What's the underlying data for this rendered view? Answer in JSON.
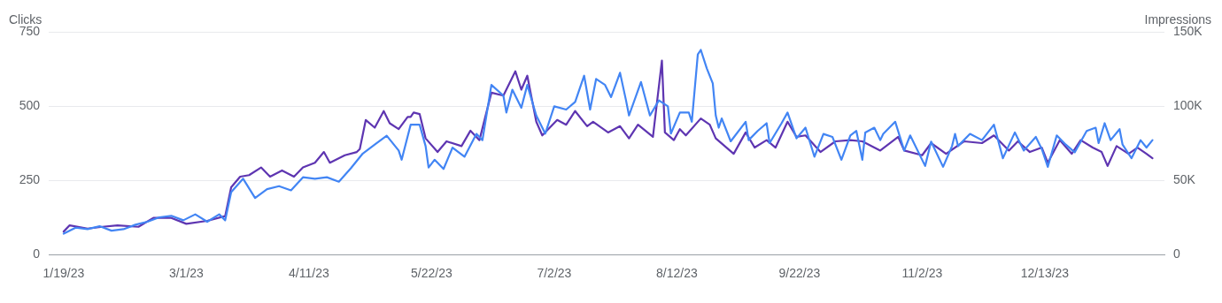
{
  "chart_data": {
    "type": "line",
    "ylabel": "Clicks",
    "y2label": "Impressions",
    "grid": "y",
    "xlim": [
      "2023-01-14",
      "2024-01-22"
    ],
    "xticks": [
      {
        "value": "2023-01-19",
        "label": "1/19/23"
      },
      {
        "value": "2023-03-01",
        "label": "3/1/23"
      },
      {
        "value": "2023-04-11",
        "label": "4/11/23"
      },
      {
        "value": "2023-05-22",
        "label": "5/22/23"
      },
      {
        "value": "2023-07-02",
        "label": "7/2/23"
      },
      {
        "value": "2023-08-12",
        "label": "8/12/23"
      },
      {
        "value": "2023-09-22",
        "label": "9/22/23"
      },
      {
        "value": "2023-11-02",
        "label": "11/2/23"
      },
      {
        "value": "2023-12-13",
        "label": "12/13/23"
      }
    ],
    "ylim": [
      0,
      750
    ],
    "yticks": [
      0,
      250,
      500,
      750
    ],
    "y2lim": [
      0,
      150000
    ],
    "y2ticks": [
      0,
      {
        "value": 50000,
        "label": "50K"
      },
      {
        "value": 100000,
        "label": "100K"
      },
      {
        "value": 150000,
        "label": "150K"
      }
    ],
    "series": [
      {
        "color": "#4285f4",
        "x": [
          "2023-01-19",
          "2023-01-23",
          "2023-01-27",
          "2023-01-31",
          "2023-02-04",
          "2023-02-08",
          "2023-02-12",
          "2023-02-16",
          "2023-02-20",
          "2023-02-24",
          "2023-02-28",
          "2023-03-04",
          "2023-03-08",
          "2023-03-12",
          "2023-03-14",
          "2023-03-16",
          "2023-03-20",
          "2023-03-24",
          "2023-03-28",
          "2023-04-01",
          "2023-04-05",
          "2023-04-09",
          "2023-04-13",
          "2023-04-17",
          "2023-04-21",
          "2023-04-25",
          "2023-04-29",
          "2023-05-03",
          "2023-05-07",
          "2023-05-11",
          "2023-05-12",
          "2023-05-15",
          "2023-05-18",
          "2023-05-20",
          "2023-05-21",
          "2023-05-23",
          "2023-05-26",
          "2023-05-29",
          "2023-06-02",
          "2023-06-06",
          "2023-06-08",
          "2023-06-11",
          "2023-06-15",
          "2023-06-16",
          "2023-06-18",
          "2023-06-21",
          "2023-06-23",
          "2023-06-26",
          "2023-06-29",
          "2023-07-02",
          "2023-07-06",
          "2023-07-09",
          "2023-07-12",
          "2023-07-14",
          "2023-07-16",
          "2023-07-19",
          "2023-07-21",
          "2023-07-24",
          "2023-07-26",
          "2023-07-27",
          "2023-07-31",
          "2023-08-03",
          "2023-08-06",
          "2023-08-09",
          "2023-08-10",
          "2023-08-13",
          "2023-08-16",
          "2023-08-17",
          "2023-08-19",
          "2023-08-20",
          "2023-08-22",
          "2023-08-24",
          "2023-08-25",
          "2023-08-26",
          "2023-08-27",
          "2023-08-30",
          "2023-09-04",
          "2023-09-05",
          "2023-09-08",
          "2023-09-11",
          "2023-09-12",
          "2023-09-16",
          "2023-09-18",
          "2023-09-21",
          "2023-09-24",
          "2023-09-27",
          "2023-09-30",
          "2023-10-03",
          "2023-10-06",
          "2023-10-09",
          "2023-10-11",
          "2023-10-13",
          "2023-10-14",
          "2023-10-17",
          "2023-10-19",
          "2023-10-20",
          "2023-10-24",
          "2023-10-27",
          "2023-10-29",
          "2023-11-03",
          "2023-11-05",
          "2023-11-09",
          "2023-11-12",
          "2023-11-13",
          "2023-11-14",
          "2023-11-18",
          "2023-11-22",
          "2023-11-26",
          "2023-11-29",
          "2023-12-03",
          "2023-12-06",
          "2023-12-10",
          "2023-12-12",
          "2023-12-14",
          "2023-12-17",
          "2023-12-20",
          "2023-12-23",
          "2023-12-27",
          "2023-12-30",
          "2023-12-31",
          "2024-01-02",
          "2024-01-04",
          "2024-01-07",
          "2024-01-08",
          "2024-01-11",
          "2024-01-14",
          "2024-01-16",
          "2024-01-18"
        ],
        "values": [
          70,
          90,
          85,
          95,
          80,
          85,
          100,
          110,
          125,
          130,
          115,
          135,
          110,
          135,
          115,
          210,
          255,
          190,
          220,
          230,
          216,
          260,
          255,
          260,
          245,
          290,
          340,
          370,
          400,
          350,
          319,
          437,
          437,
          365,
          293,
          319,
          288,
          360,
          329,
          406,
          385,
          571,
          535,
          478,
          555,
          494,
          571,
          468,
          407,
          499,
          488,
          514,
          602,
          488,
          591,
          571,
          530,
          612,
          519,
          468,
          581,
          468,
          519,
          499,
          407,
          478,
          478,
          447,
          674,
          689,
          627,
          576,
          468,
          427,
          458,
          381,
          447,
          385,
          416,
          442,
          375,
          442,
          478,
          391,
          427,
          329,
          406,
          396,
          319,
          401,
          416,
          319,
          411,
          427,
          385,
          406,
          447,
          350,
          401,
          298,
          380,
          295,
          365,
          406,
          365,
          406,
          385,
          437,
          324,
          411,
          350,
          396,
          355,
          295,
          401,
          370,
          344,
          416,
          427,
          375,
          442,
          385,
          422,
          370,
          324,
          385,
          360,
          385
        ]
      },
      {
        "color": "#5e35b1",
        "axis": "y2",
        "x": [
          "2023-01-19",
          "2023-01-21",
          "2023-01-27",
          "2023-02-01",
          "2023-02-06",
          "2023-02-13",
          "2023-02-18",
          "2023-02-24",
          "2023-03-01",
          "2023-03-08",
          "2023-03-14",
          "2023-03-16",
          "2023-03-19",
          "2023-03-22",
          "2023-03-26",
          "2023-03-29",
          "2023-04-02",
          "2023-04-06",
          "2023-04-09",
          "2023-04-13",
          "2023-04-16",
          "2023-04-18",
          "2023-04-23",
          "2023-04-27",
          "2023-04-28",
          "2023-04-30",
          "2023-05-03",
          "2023-05-06",
          "2023-05-08",
          "2023-05-11",
          "2023-05-14",
          "2023-05-15",
          "2023-05-16",
          "2023-05-18",
          "2023-05-20",
          "2023-05-24",
          "2023-05-27",
          "2023-06-01",
          "2023-06-04",
          "2023-06-07",
          "2023-06-11",
          "2023-06-15",
          "2023-06-19",
          "2023-06-21",
          "2023-06-23",
          "2023-06-26",
          "2023-06-28",
          "2023-07-03",
          "2023-07-06",
          "2023-07-09",
          "2023-07-13",
          "2023-07-15",
          "2023-07-20",
          "2023-07-24",
          "2023-07-27",
          "2023-07-30",
          "2023-08-04",
          "2023-08-07",
          "2023-08-08",
          "2023-08-11",
          "2023-08-13",
          "2023-08-15",
          "2023-08-20",
          "2023-08-23",
          "2023-08-25",
          "2023-08-31",
          "2023-09-04",
          "2023-09-07",
          "2023-09-11",
          "2023-09-14",
          "2023-09-18",
          "2023-09-21",
          "2023-09-24",
          "2023-09-29",
          "2023-10-04",
          "2023-10-09",
          "2023-10-13",
          "2023-10-19",
          "2023-10-25",
          "2023-10-27",
          "2023-11-02",
          "2023-11-05",
          "2023-11-10",
          "2023-11-16",
          "2023-11-22",
          "2023-11-26",
          "2023-12-01",
          "2023-12-04",
          "2023-12-08",
          "2023-12-12",
          "2023-12-14",
          "2023-12-18",
          "2023-12-22",
          "2023-12-25",
          "2023-12-29",
          "2024-01-01",
          "2024-01-03",
          "2024-01-06",
          "2024-01-10",
          "2024-01-13",
          "2024-01-16",
          "2024-01-18"
        ],
        "values": [
          15400,
          19600,
          17400,
          18600,
          19600,
          18600,
          24600,
          24600,
          20600,
          22600,
          25800,
          45200,
          52400,
          53400,
          58600,
          52400,
          56600,
          52400,
          58600,
          61800,
          69000,
          61800,
          66800,
          69000,
          71000,
          90600,
          85400,
          96600,
          88400,
          84400,
          92600,
          92600,
          95600,
          94600,
          78200,
          69000,
          76200,
          73000,
          83400,
          77000,
          109000,
          107000,
          123400,
          111000,
          120400,
          89400,
          80200,
          90600,
          87400,
          96600,
          86400,
          89400,
          82200,
          86400,
          78200,
          87400,
          79200,
          130600,
          82200,
          77000,
          84400,
          80200,
          91600,
          87400,
          78200,
          67800,
          82200,
          72000,
          77000,
          72000,
          89400,
          79200,
          80200,
          69000,
          76200,
          77000,
          76200,
          70000,
          79200,
          70000,
          66800,
          75000,
          67800,
          76200,
          75000,
          80200,
          70000,
          76200,
          69000,
          72000,
          61800,
          77000,
          67800,
          77000,
          72000,
          69000,
          59600,
          73000,
          67800,
          72000,
          67800,
          64800
        ]
      }
    ]
  }
}
